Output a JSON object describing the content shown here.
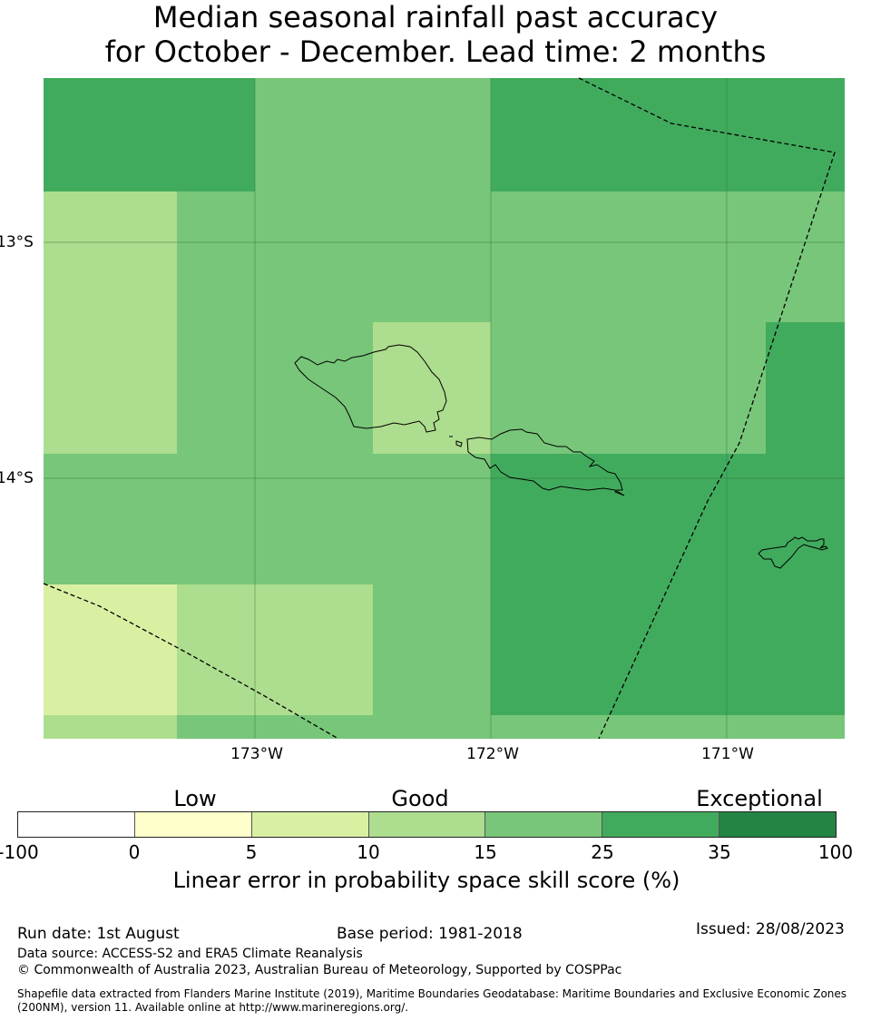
{
  "title": {
    "line1": "Median seasonal rainfall past accuracy",
    "line2": "for October - December. Lead time: 2 months"
  },
  "map": {
    "lat_labels": [
      "13°S",
      "14°S"
    ],
    "lon_labels": [
      "173°W",
      "172°W",
      "171°W"
    ],
    "grid_value_classes": [
      [
        5,
        5,
        4,
        4,
        5,
        5,
        5
      ],
      [
        3,
        4,
        4,
        4,
        4,
        4,
        4
      ],
      [
        3,
        4,
        4,
        3,
        4,
        4,
        5
      ],
      [
        4,
        4,
        4,
        4,
        5,
        5,
        5
      ],
      [
        2,
        3,
        3,
        4,
        5,
        5,
        5
      ],
      [
        3,
        4,
        4,
        4,
        4,
        4,
        4
      ]
    ]
  },
  "legend": {
    "category_labels": [
      "Low",
      "Good",
      "Exceptional"
    ],
    "tick_labels": [
      "-100",
      "0",
      "5",
      "10",
      "15",
      "25",
      "35",
      "100"
    ],
    "colors": [
      "#ffffff",
      "#ffffcc",
      "#d9f0a3",
      "#addd8e",
      "#78c679",
      "#41ab5d",
      "#238443"
    ],
    "title": "Linear error in probability space skill score (%)"
  },
  "footer": {
    "run_date": "Run date: 1st August",
    "base_period": "Base period: 1981-2018",
    "issued": "Issued: 28/08/2023",
    "data_source": "Data source: ACCESS-S2 and ERA5 Climate Reanalysis",
    "copyright": "© Commonwealth of Australia 2023, Australian Bureau of Meteorology, Supported by COSPPac",
    "shapefile_line1": "Shapefile data extracted from Flanders Marine Institute (2019), Maritime Boundaries Geodatabase: Maritime Boundaries and Exclusive Economic Zones",
    "shapefile_line2": "(200NM), version 11. Available online at http://www.marineregions.org/."
  }
}
